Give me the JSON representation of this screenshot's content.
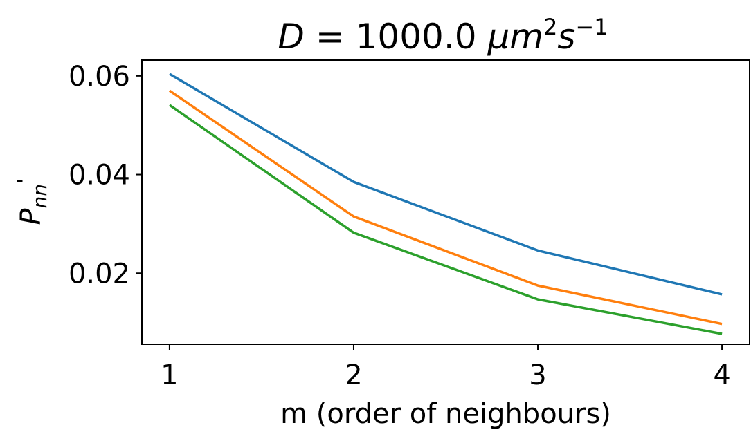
{
  "chart_data": {
    "type": "line",
    "title": "D = 1000.0 μm²s⁻¹",
    "title_parts": {
      "lhs": "D",
      "eq": " = 1000.0 ",
      "unit1": "μm",
      "exp1": "2",
      "unit2": "s",
      "exp2": "−1"
    },
    "xlabel": "m (order of neighbours)",
    "ylabel": "P",
    "ylabel_sub": "nn",
    "ylabel_sup": "'",
    "x": [
      1,
      2,
      3,
      4
    ],
    "xlim": [
      0.85,
      4.15
    ],
    "ylim": [
      0.0056,
      0.0632
    ],
    "xticks": [
      1,
      2,
      3,
      4
    ],
    "yticks": [
      0.02,
      0.04,
      0.06
    ],
    "ytick_labels": [
      "0.02",
      "0.04",
      "0.06"
    ],
    "grid": false,
    "series": [
      {
        "color": "#1f77b4",
        "values": [
          0.0604,
          0.0385,
          0.0246,
          0.0157
        ]
      },
      {
        "color": "#ff7f0e",
        "values": [
          0.057,
          0.0315,
          0.0175,
          0.0097
        ]
      },
      {
        "color": "#2ca02c",
        "values": [
          0.0541,
          0.0282,
          0.0147,
          0.0077
        ]
      }
    ]
  }
}
